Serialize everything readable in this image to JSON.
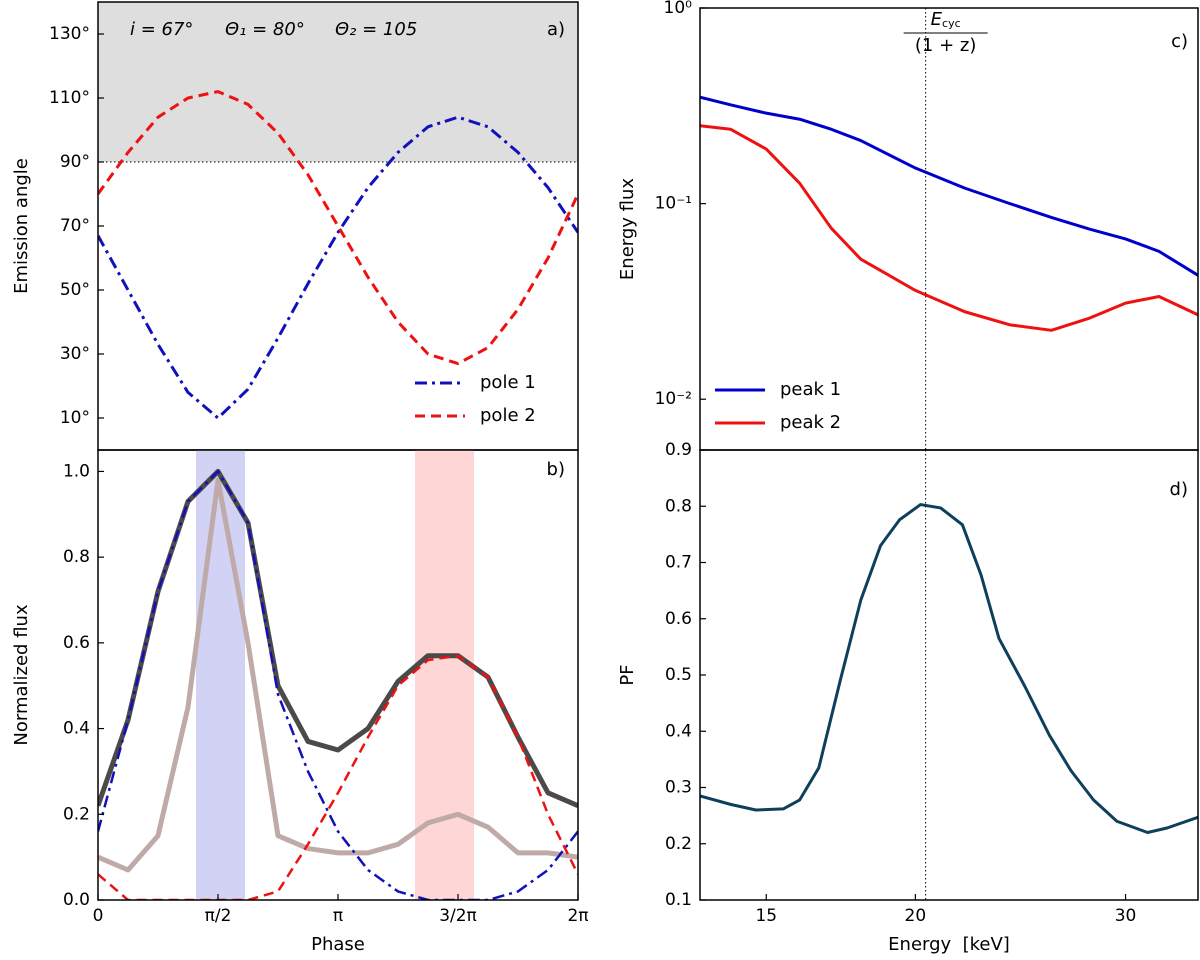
{
  "chart_data": [
    {
      "type": "line",
      "ylabel": "Emission angle",
      "panel_label": "a)",
      "annotations": [
        "i = 67°",
        "Θ₁ = 80°",
        "Θ₂ = 105"
      ],
      "x": [
        0,
        0.3927,
        0.7854,
        1.1781,
        1.5708,
        1.9635,
        2.3562,
        2.7489,
        3.1416,
        3.5343,
        3.927,
        4.3197,
        4.7124,
        5.1051,
        5.4978,
        5.8905,
        6.2832
      ],
      "xlim": [
        0,
        6.2832
      ],
      "ylim": [
        0,
        140
      ],
      "yticks": [
        {
          "value": 10,
          "label": "10°"
        },
        {
          "value": 30,
          "label": "30°"
        },
        {
          "value": 50,
          "label": "50°"
        },
        {
          "value": 70,
          "label": "70°"
        },
        {
          "value": 90,
          "label": "90°"
        },
        {
          "value": 110,
          "label": "110°"
        },
        {
          "value": 130,
          "label": "130°"
        }
      ],
      "shade_above": 90,
      "shade_color": "#dedede",
      "hline": 90,
      "legend": "lower right",
      "series": [
        {
          "name": "pole 1",
          "color": "#1111bb",
          "dash": "dashdot",
          "values": [
            67,
            50,
            33,
            18,
            10,
            19,
            35,
            52,
            68,
            82,
            93,
            101,
            104,
            101,
            93,
            82,
            68
          ]
        },
        {
          "name": "pole 2",
          "color": "#ee1111",
          "dash": "dashed",
          "values": [
            80,
            93,
            104,
            110,
            112,
            108,
            99,
            86,
            70,
            54,
            40,
            30,
            27,
            32,
            44,
            60,
            80
          ]
        }
      ]
    },
    {
      "type": "line",
      "xlabel": "Phase",
      "ylabel": "Normalized flux",
      "panel_label": "b)",
      "x": [
        0,
        0.3927,
        0.7854,
        1.1781,
        1.5708,
        1.9635,
        2.3562,
        2.7489,
        3.1416,
        3.5343,
        3.927,
        4.3197,
        4.7124,
        5.1051,
        5.4978,
        5.8905,
        6.2832
      ],
      "xlim": [
        0,
        6.2832
      ],
      "ylim": [
        0,
        1.05
      ],
      "xticks": [
        0,
        {
          "value": 1.5708,
          "label": "π/2"
        },
        {
          "value": 3.1416,
          "label": "π"
        },
        {
          "value": 4.7124,
          "label": "3/2π"
        },
        {
          "value": 6.2832,
          "label": "2π"
        }
      ],
      "yticks": [
        {
          "value": 0,
          "label": "0.0"
        },
        0.2,
        0.4,
        0.6,
        0.8,
        {
          "value": 1,
          "label": "1.0"
        }
      ],
      "spans": [
        {
          "x": [
            1.283,
            1.924
          ],
          "color": "#d2d2f4"
        },
        {
          "x": [
            4.15,
            4.922
          ],
          "color": "#ffd6d6"
        }
      ],
      "series": [
        {
          "color": "#bfaaa8",
          "dash": "solid",
          "width": 5,
          "values": [
            0.1,
            0.07,
            0.15,
            0.45,
            0.98,
            0.6,
            0.15,
            0.12,
            0.11,
            0.11,
            0.13,
            0.18,
            0.2,
            0.17,
            0.11,
            0.11,
            0.1
          ]
        },
        {
          "color": "#4d4949",
          "dash": "solid",
          "width": 5,
          "values": [
            0.22,
            0.42,
            0.72,
            0.93,
            1.0,
            0.88,
            0.5,
            0.37,
            0.35,
            0.4,
            0.51,
            0.57,
            0.57,
            0.52,
            0.38,
            0.25,
            0.22
          ]
        },
        {
          "color": "#1111bb",
          "dash": "dashdot",
          "width": 2.5,
          "values": [
            0.16,
            0.42,
            0.72,
            0.93,
            1.0,
            0.88,
            0.48,
            0.3,
            0.16,
            0.07,
            0.02,
            0,
            0,
            0,
            0.02,
            0.07,
            0.16
          ]
        },
        {
          "color": "#ee1111",
          "dash": "dashed",
          "width": 2.5,
          "values": [
            0.06,
            0,
            0,
            0,
            0,
            0,
            0.02,
            0.13,
            0.25,
            0.38,
            0.5,
            0.56,
            0.57,
            0.52,
            0.38,
            0.2,
            0.06
          ]
        }
      ]
    },
    {
      "type": "line",
      "ylabel": "Energy flux",
      "panel_label": "c)",
      "annotation": {
        "symbol": "E",
        "subscript": "cyc",
        "denominator": "(1 + z)"
      },
      "x": [
        13.2,
        14,
        15,
        16,
        17,
        18,
        20,
        22,
        24,
        26,
        28,
        30,
        32,
        34.5
      ],
      "xscale": "log",
      "yscale": "log",
      "xlim": [
        13.2,
        34.5
      ],
      "ylim": [
        0.0055,
        1
      ],
      "yticks": [
        {
          "value": 1,
          "label": "10⁰"
        },
        {
          "value": 0.1,
          "label": "10⁻¹"
        },
        {
          "value": 0.01,
          "label": "10⁻²"
        }
      ],
      "vline": 20.4,
      "legend": "lower left",
      "series": [
        {
          "name": "peak 1",
          "color": "#0000cc",
          "dash": "solid",
          "values": [
            0.35,
            0.32,
            0.29,
            0.27,
            0.24,
            0.21,
            0.152,
            0.12,
            0.1,
            0.085,
            0.074,
            0.066,
            0.057,
            0.043
          ]
        },
        {
          "name": "peak 2",
          "color": "#ee1111",
          "dash": "solid",
          "values": [
            0.25,
            0.24,
            0.19,
            0.127,
            0.075,
            0.052,
            0.036,
            0.028,
            0.024,
            0.0225,
            0.026,
            0.031,
            0.0335,
            0.027
          ]
        }
      ]
    },
    {
      "type": "line",
      "xlabel": "Energy  [keV]",
      "ylabel": "PF",
      "panel_label": "d)",
      "x": [
        13.2,
        14,
        14.7,
        15.5,
        16,
        16.6,
        17.3,
        18,
        18.7,
        19.4,
        20.2,
        21,
        21.9,
        22.7,
        23.5,
        24.7,
        25.9,
        27,
        28.2,
        29.5,
        31.3,
        32.5,
        34.5
      ],
      "xscale": "log",
      "xlim": [
        13.2,
        34.5
      ],
      "ylim": [
        0.1,
        0.9
      ],
      "xticks": [
        15,
        20,
        30
      ],
      "yticks": [
        0.1,
        0.2,
        0.3,
        0.4,
        0.5,
        0.6,
        0.7,
        0.8,
        0.9
      ],
      "vline": 20.4,
      "series": [
        {
          "color": "#0e3f5c",
          "dash": "solid",
          "values": [
            0.285,
            0.27,
            0.26,
            0.262,
            0.278,
            0.335,
            0.49,
            0.633,
            0.73,
            0.776,
            0.803,
            0.797,
            0.767,
            0.678,
            0.565,
            0.48,
            0.393,
            0.33,
            0.278,
            0.24,
            0.22,
            0.228,
            0.247
          ]
        }
      ]
    }
  ]
}
